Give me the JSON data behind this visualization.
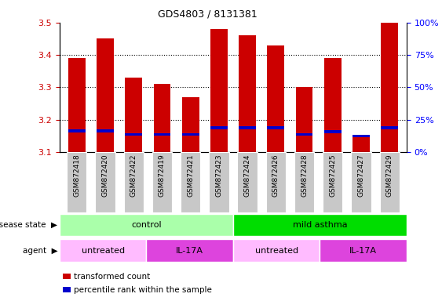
{
  "title": "GDS4803 / 8131381",
  "samples": [
    "GSM872418",
    "GSM872420",
    "GSM872422",
    "GSM872419",
    "GSM872421",
    "GSM872423",
    "GSM872424",
    "GSM872426",
    "GSM872428",
    "GSM872425",
    "GSM872427",
    "GSM872429"
  ],
  "red_values": [
    3.39,
    3.45,
    3.33,
    3.31,
    3.27,
    3.48,
    3.46,
    3.43,
    3.3,
    3.39,
    3.15,
    3.5
  ],
  "blue_values": [
    3.165,
    3.165,
    3.155,
    3.155,
    3.155,
    3.175,
    3.175,
    3.175,
    3.155,
    3.163,
    3.15,
    3.175
  ],
  "y_min": 3.1,
  "y_max": 3.5,
  "y_ticks": [
    3.1,
    3.2,
    3.3,
    3.4,
    3.5
  ],
  "right_y_ticks": [
    0,
    25,
    50,
    75,
    100
  ],
  "right_y_tick_labels": [
    "0%",
    "25%",
    "50%",
    "75%",
    "100%"
  ],
  "bar_color": "#cc0000",
  "blue_color": "#0000cc",
  "disease_state_groups": [
    {
      "label": "control",
      "start": 0,
      "end": 6,
      "color": "#aaffaa"
    },
    {
      "label": "mild asthma",
      "start": 6,
      "end": 12,
      "color": "#00dd00"
    }
  ],
  "agent_groups": [
    {
      "label": "untreated",
      "start": 0,
      "end": 3,
      "color": "#ffbbff"
    },
    {
      "label": "IL-17A",
      "start": 3,
      "end": 6,
      "color": "#dd44dd"
    },
    {
      "label": "untreated",
      "start": 6,
      "end": 9,
      "color": "#ffbbff"
    },
    {
      "label": "IL-17A",
      "start": 9,
      "end": 12,
      "color": "#dd44dd"
    }
  ],
  "legend_items": [
    {
      "label": "transformed count",
      "color": "#cc0000"
    },
    {
      "label": "percentile rank within the sample",
      "color": "#0000cc"
    }
  ],
  "bar_width": 0.6
}
